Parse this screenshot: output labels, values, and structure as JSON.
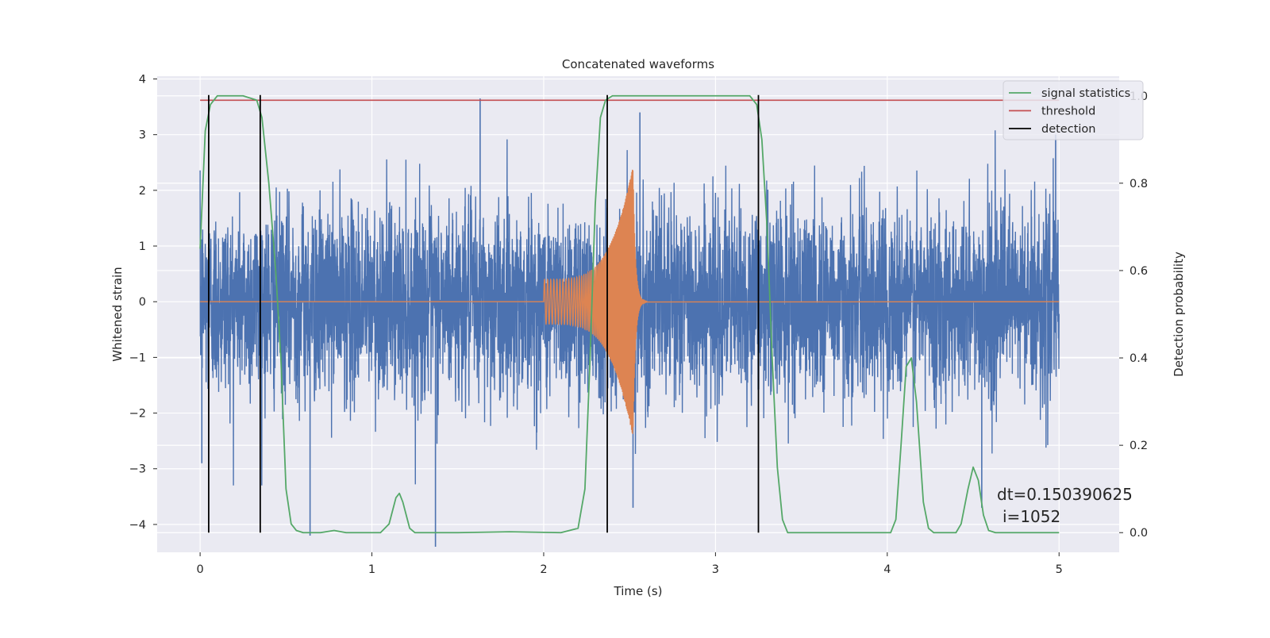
{
  "chart_data": {
    "type": "line",
    "title": "Concatenated waveforms",
    "xlabel": "Time (s)",
    "ylabel": "Whitened strain",
    "ylabel_right": "Detection probability",
    "xlim": [
      -0.25,
      5.35
    ],
    "ylim": [
      -4.5,
      4.05
    ],
    "ylim_right": [
      -0.045,
      1.045
    ],
    "x_ticks": [
      0,
      1,
      2,
      3,
      4,
      5
    ],
    "y_ticks": [
      -4,
      -3,
      -2,
      -1,
      0,
      1,
      2,
      3,
      4
    ],
    "y_ticks_right": [
      0.0,
      0.2,
      0.4,
      0.6,
      0.8,
      1.0
    ],
    "grid": true,
    "legend_position": "top-right",
    "legend": [
      "signal statistics",
      "threshold",
      "detection"
    ],
    "colors": {
      "noise": "#4c72b0",
      "template": "#dd8452",
      "statistics": "#55a868",
      "threshold": "#c44e52",
      "detection": "#000000",
      "axes_bg": "#eaeaf2",
      "grid": "#ffffff"
    },
    "annotation": [
      "dt=0.150390625",
      "i=1052"
    ],
    "series": [
      {
        "name": "noise",
        "axis": "left",
        "description_range": [
          0,
          5
        ],
        "noise_std": 0.85,
        "extremes": [
          {
            "x": 0.01,
            "y": -2.9
          },
          {
            "x": 0.64,
            "y": -4.2
          },
          {
            "x": 1.37,
            "y": -4.4
          },
          {
            "x": 1.63,
            "y": 3.65
          },
          {
            "x": 2.52,
            "y": -3.7
          },
          {
            "x": 2.56,
            "y": 3.4
          },
          {
            "x": 4.55,
            "y": -3.7
          },
          {
            "x": 4.98,
            "y": 3.0
          }
        ]
      },
      {
        "name": "template",
        "axis": "left",
        "x_start": 2.0,
        "x_peak": 2.52,
        "x_end": 2.6,
        "amplitude_start": 0.4,
        "amplitude_peak": 2.45
      },
      {
        "name": "signal statistics",
        "axis": "right",
        "points": [
          [
            0.0,
            0.65
          ],
          [
            0.03,
            0.92
          ],
          [
            0.06,
            0.98
          ],
          [
            0.1,
            1.0
          ],
          [
            0.25,
            1.0
          ],
          [
            0.33,
            0.99
          ],
          [
            0.36,
            0.95
          ],
          [
            0.4,
            0.8
          ],
          [
            0.44,
            0.6
          ],
          [
            0.47,
            0.4
          ],
          [
            0.5,
            0.1
          ],
          [
            0.53,
            0.02
          ],
          [
            0.56,
            0.005
          ],
          [
            0.6,
            0.0
          ],
          [
            0.7,
            0.0
          ],
          [
            0.78,
            0.005
          ],
          [
            0.85,
            0.0
          ],
          [
            1.05,
            0.0
          ],
          [
            1.1,
            0.02
          ],
          [
            1.14,
            0.08
          ],
          [
            1.16,
            0.09
          ],
          [
            1.18,
            0.07
          ],
          [
            1.22,
            0.01
          ],
          [
            1.25,
            0.0
          ],
          [
            1.5,
            0.0
          ],
          [
            1.8,
            0.002
          ],
          [
            2.1,
            0.0
          ],
          [
            2.2,
            0.01
          ],
          [
            2.24,
            0.1
          ],
          [
            2.27,
            0.4
          ],
          [
            2.3,
            0.75
          ],
          [
            2.33,
            0.95
          ],
          [
            2.36,
            0.99
          ],
          [
            2.4,
            1.0
          ],
          [
            3.2,
            1.0
          ],
          [
            3.24,
            0.98
          ],
          [
            3.27,
            0.9
          ],
          [
            3.3,
            0.7
          ],
          [
            3.33,
            0.4
          ],
          [
            3.36,
            0.15
          ],
          [
            3.39,
            0.03
          ],
          [
            3.42,
            0.0
          ],
          [
            4.02,
            0.0
          ],
          [
            4.05,
            0.03
          ],
          [
            4.08,
            0.2
          ],
          [
            4.11,
            0.38
          ],
          [
            4.14,
            0.4
          ],
          [
            4.17,
            0.3
          ],
          [
            4.21,
            0.07
          ],
          [
            4.24,
            0.01
          ],
          [
            4.27,
            0.0
          ],
          [
            4.4,
            0.0
          ],
          [
            4.43,
            0.02
          ],
          [
            4.47,
            0.1
          ],
          [
            4.5,
            0.15
          ],
          [
            4.53,
            0.12
          ],
          [
            4.56,
            0.04
          ],
          [
            4.59,
            0.005
          ],
          [
            4.63,
            0.0
          ],
          [
            5.0,
            0.0
          ]
        ]
      },
      {
        "name": "threshold",
        "axis": "right",
        "y": 0.99,
        "x_range": [
          0,
          5
        ]
      },
      {
        "name": "detection",
        "axis": "right",
        "x": [
          0.05,
          0.35,
          2.37,
          3.25
        ],
        "y_range": [
          0.0,
          1.0
        ]
      }
    ]
  }
}
